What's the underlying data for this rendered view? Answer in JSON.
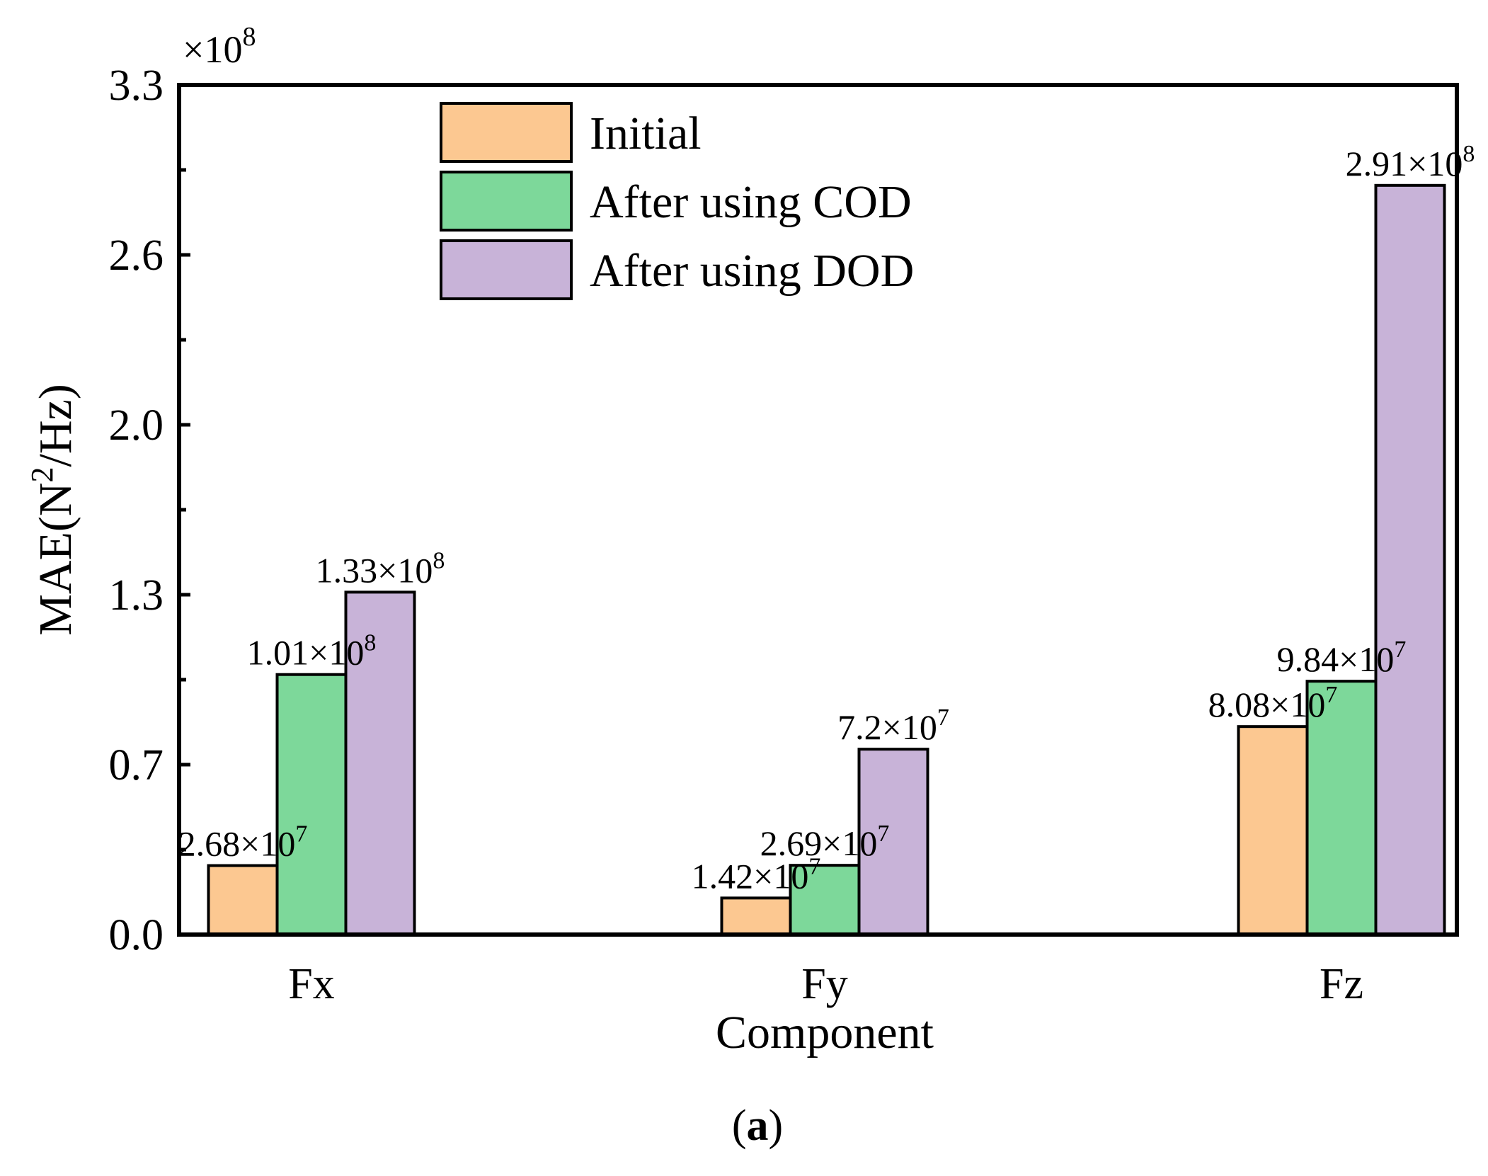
{
  "chart_data": {
    "type": "bar",
    "title": "",
    "multiplier": {
      "prefix": "×10",
      "exponent": "8"
    },
    "xlabel": "Component",
    "ylabel": {
      "base": "MAE(N",
      "sup": "2",
      "rest": "/Hz)"
    },
    "ylim": [
      0,
      3.3
    ],
    "yticks": [
      {
        "value": 0.0,
        "label": "0.0"
      },
      {
        "value": 0.66,
        "label": "0.7"
      },
      {
        "value": 1.32,
        "label": "1.3"
      },
      {
        "value": 1.98,
        "label": "2.0"
      },
      {
        "value": 2.64,
        "label": "2.6"
      },
      {
        "value": 3.3,
        "label": "3.3"
      }
    ],
    "yminor": [
      0.33,
      0.99,
      1.65,
      2.31,
      2.97
    ],
    "categories": [
      "Fx",
      "Fy",
      "Fz"
    ],
    "series": [
      {
        "name": "Initial",
        "color": "#FCC891",
        "values": [
          0.268,
          0.142,
          0.808
        ],
        "labels": [
          {
            "mant": "2.68×10",
            "exp": "7"
          },
          {
            "mant": "1.42×10",
            "exp": "7"
          },
          {
            "mant": "8.08×10",
            "exp": "7"
          }
        ]
      },
      {
        "name": "After using COD",
        "color": "#7DD89A",
        "values": [
          1.01,
          0.269,
          0.984
        ],
        "labels": [
          {
            "mant": "1.01×10",
            "exp": "8"
          },
          {
            "mant": "2.69×10",
            "exp": "7"
          },
          {
            "mant": "9.84×10",
            "exp": "7"
          }
        ]
      },
      {
        "name": "After using DOD",
        "color": "#C8B3D8",
        "values": [
          1.33,
          0.72,
          2.91
        ],
        "labels": [
          {
            "mant": "1.33×10",
            "exp": "8"
          },
          {
            "mant": "7.2×10",
            "exp": "7"
          },
          {
            "mant": "2.91×10",
            "exp": "8"
          }
        ]
      }
    ],
    "legend_position": "top-center",
    "grid": false
  },
  "caption": {
    "open": "(",
    "letter": "a",
    "close": ")"
  }
}
